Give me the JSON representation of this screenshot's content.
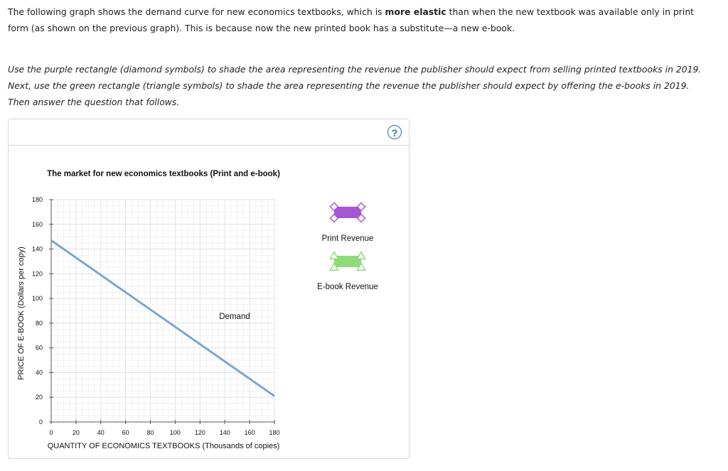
{
  "intro": {
    "before": "The following graph shows the demand curve for new economics textbooks, which is ",
    "bold": "more elastic",
    "after": " than when the new textbook was available only in print form (as shown on the previous graph). This is because now the new printed book has a substitute—a new e-book."
  },
  "instructions": "Use the purple rectangle (diamond symbols) to shade the area representing the revenue the publisher should expect from selling printed textbooks in 2019. Next, use the green rectangle (triangle symbols) to shade the area representing the revenue the publisher should expect by offering the e-books in 2019. Then answer the question that follows.",
  "help_label": "?",
  "chart_data": {
    "type": "line",
    "title": "The market for new economics textbooks (Print and e-book)",
    "xlabel": "QUANTITY OF ECONOMICS TEXTBOOKS (Thousands of copies)",
    "ylabel": "PRICE OF E-BOOK (Dollars per copy)",
    "xlim": [
      0,
      180
    ],
    "ylim": [
      0,
      180
    ],
    "xticks": [
      0,
      20,
      40,
      60,
      80,
      100,
      120,
      140,
      160,
      180
    ],
    "yticks": [
      0,
      20,
      40,
      60,
      80,
      100,
      120,
      140,
      160,
      180
    ],
    "grid": true,
    "series": [
      {
        "name": "Demand",
        "color": "#7ba7d0",
        "x": [
          0,
          180
        ],
        "y": [
          147,
          21
        ]
      }
    ],
    "legend": [
      {
        "label": "Print Revenue",
        "color": "#a656d4",
        "marker": "diamond"
      },
      {
        "label": "E-book Revenue",
        "color": "#8fdb7a",
        "marker": "triangle"
      }
    ]
  }
}
